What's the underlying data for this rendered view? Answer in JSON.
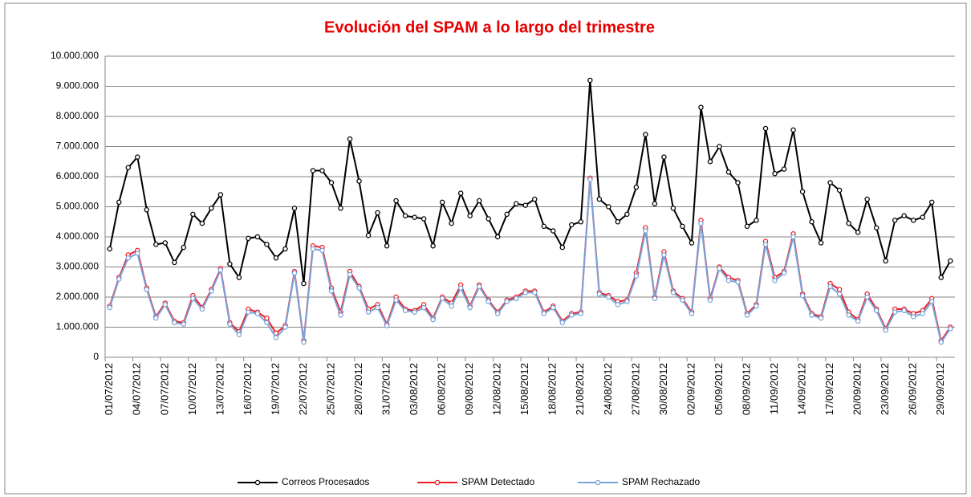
{
  "chart_data": {
    "type": "line",
    "title": "Evolución del SPAM a lo largo del trimestre",
    "categories": [
      "01/07/2012",
      null,
      null,
      "04/07/2012",
      null,
      null,
      "07/07/2012",
      null,
      null,
      "10/07/2012",
      null,
      null,
      "13/07/2012",
      null,
      null,
      "16/07/2012",
      null,
      null,
      "19/07/2012",
      null,
      null,
      "22/07/2012",
      null,
      null,
      "25/07/2012",
      null,
      null,
      "28/07/2012",
      null,
      null,
      "31/07/2012",
      null,
      null,
      "03/08/2012",
      null,
      null,
      "06/08/2012",
      null,
      null,
      "09/08/2012",
      null,
      null,
      "12/08/2012",
      null,
      null,
      "15/08/2012",
      null,
      null,
      "18/08/2012",
      null,
      null,
      "21/08/2012",
      null,
      null,
      "24/08/2012",
      null,
      null,
      "27/08/2012",
      null,
      null,
      "30/08/2012",
      null,
      null,
      "02/09/2012",
      null,
      null,
      "05/09/2012",
      null,
      null,
      "08/09/2012",
      null,
      null,
      "11/09/2012",
      null,
      null,
      "14/09/2012",
      null,
      null,
      "17/09/2012",
      null,
      null,
      "20/09/2012",
      null,
      null,
      "23/09/2012",
      null,
      null,
      "26/09/2012",
      null,
      null,
      "29/09/2012",
      null
    ],
    "series": [
      {
        "name": "Correos Procesados",
        "color": "#000000",
        "values": [
          3600000,
          5150000,
          6300000,
          6650000,
          4900000,
          3750000,
          3800000,
          3150000,
          3650000,
          4750000,
          4450000,
          4950000,
          5400000,
          3100000,
          2650000,
          3950000,
          4000000,
          3750000,
          3300000,
          3600000,
          4950000,
          2450000,
          6200000,
          6200000,
          5800000,
          4950000,
          7250000,
          5850000,
          4050000,
          4800000,
          3700000,
          5200000,
          4700000,
          4650000,
          4600000,
          3700000,
          5150000,
          4450000,
          5450000,
          4700000,
          5200000,
          4600000,
          4000000,
          4750000,
          5100000,
          5050000,
          5250000,
          4350000,
          4200000,
          3650000,
          4400000,
          4500000,
          9200000,
          5250000,
          5000000,
          4500000,
          4750000,
          5650000,
          7400000,
          5100000,
          6650000,
          4950000,
          4350000,
          3800000,
          8300000,
          6500000,
          7000000,
          6150000,
          5800000,
          4350000,
          4550000,
          7600000,
          6100000,
          6250000,
          7550000,
          5500000,
          4500000,
          3800000,
          5800000,
          5550000,
          4450000,
          4150000,
          5250000,
          4300000,
          3200000,
          4550000,
          4700000,
          4550000,
          4650000,
          5150000,
          2650000,
          3200000
        ]
      },
      {
        "name": "SPAM Detectado",
        "color": "#ee1c25",
        "values": [
          1700000,
          2650000,
          3400000,
          3550000,
          2300000,
          1350000,
          1800000,
          1200000,
          1150000,
          2050000,
          1650000,
          2250000,
          2950000,
          1150000,
          850000,
          1600000,
          1500000,
          1300000,
          800000,
          1050000,
          2850000,
          550000,
          3700000,
          3650000,
          2300000,
          1500000,
          2850000,
          2350000,
          1600000,
          1750000,
          1100000,
          2000000,
          1600000,
          1550000,
          1750000,
          1300000,
          2000000,
          1800000,
          2400000,
          1700000,
          2400000,
          1900000,
          1500000,
          1900000,
          2000000,
          2200000,
          2200000,
          1500000,
          1700000,
          1200000,
          1450000,
          1500000,
          5950000,
          2150000,
          2050000,
          1850000,
          1900000,
          2800000,
          4300000,
          2000000,
          3500000,
          2200000,
          1950000,
          1500000,
          4550000,
          1950000,
          3000000,
          2650000,
          2550000,
          1450000,
          1750000,
          3850000,
          2650000,
          2850000,
          4100000,
          2100000,
          1450000,
          1350000,
          2450000,
          2250000,
          1500000,
          1250000,
          2100000,
          1600000,
          950000,
          1600000,
          1600000,
          1450000,
          1550000,
          1950000,
          550000,
          1000000
        ]
      },
      {
        "name": "SPAM Rechazado",
        "color": "#7aa3d8",
        "values": [
          1650000,
          2600000,
          3300000,
          3450000,
          2250000,
          1300000,
          1750000,
          1150000,
          1100000,
          1950000,
          1600000,
          2200000,
          2900000,
          1100000,
          750000,
          1500000,
          1450000,
          1150000,
          650000,
          1000000,
          2800000,
          500000,
          3600000,
          3550000,
          2200000,
          1400000,
          2750000,
          2300000,
          1500000,
          1650000,
          1050000,
          1900000,
          1550000,
          1500000,
          1650000,
          1250000,
          1950000,
          1700000,
          2300000,
          1650000,
          2350000,
          1850000,
          1450000,
          1850000,
          1950000,
          2150000,
          2150000,
          1450000,
          1650000,
          1150000,
          1400000,
          1450000,
          5900000,
          2100000,
          2000000,
          1750000,
          1850000,
          2700000,
          4200000,
          1950000,
          3400000,
          2150000,
          1900000,
          1450000,
          4450000,
          1900000,
          2950000,
          2550000,
          2500000,
          1400000,
          1700000,
          3750000,
          2550000,
          2800000,
          4000000,
          2050000,
          1400000,
          1300000,
          2350000,
          2100000,
          1400000,
          1200000,
          2000000,
          1550000,
          900000,
          1500000,
          1550000,
          1350000,
          1450000,
          1850000,
          500000,
          950000
        ]
      }
    ],
    "ylim": [
      0,
      10000000
    ],
    "yticks": [
      0,
      {
        "value": 1000000,
        "label": "1.000.000"
      },
      {
        "value": 2000000,
        "label": "2.000.000"
      },
      {
        "value": 3000000,
        "label": "3.000.000"
      },
      {
        "value": 4000000,
        "label": "4.000.000"
      },
      {
        "value": 5000000,
        "label": "5.000.000"
      },
      {
        "value": 6000000,
        "label": "6.000.000"
      },
      {
        "value": 7000000,
        "label": "7.000.000"
      },
      {
        "value": 8000000,
        "label": "8.000.000"
      },
      {
        "value": 9000000,
        "label": "9.000.000"
      },
      {
        "value": 10000000,
        "label": "10.000.000"
      }
    ],
    "grid": true,
    "legend": "bottom"
  }
}
